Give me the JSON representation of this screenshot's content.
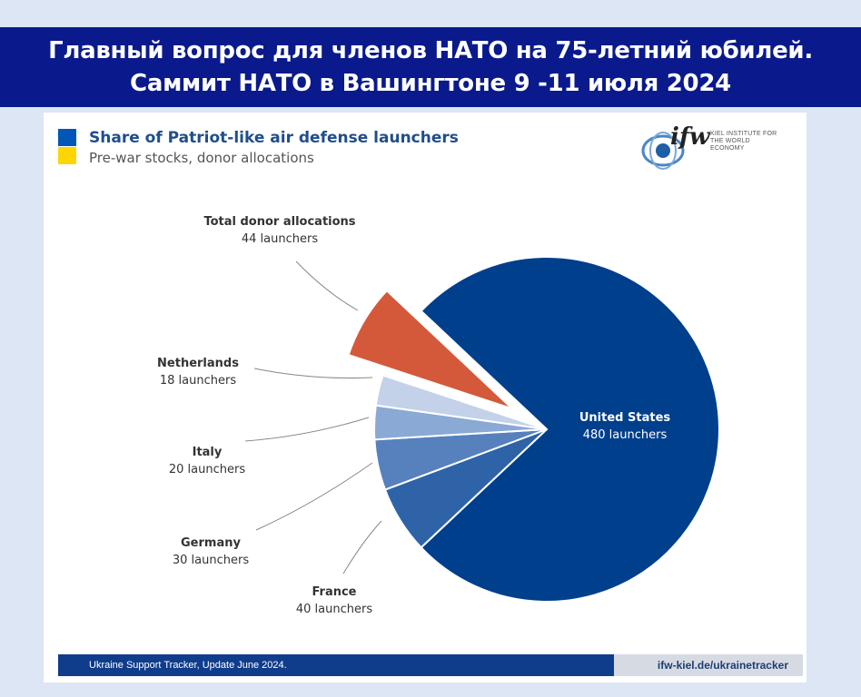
{
  "banner": {
    "line1": "Главный вопрос для членов НАТО на 75-летний юбилей.",
    "line2": "Саммит НАТО в Вашингтоне 9 -11 июля 2024"
  },
  "logo": {
    "mark": "ifw",
    "institute_line1": "KIEL INSTITUTE FOR",
    "institute_line2": "THE WORLD ECONOMY"
  },
  "footer": {
    "source": "Ukraine Support Tracker, Update June 2024.",
    "url": "ifw-kiel.de/ukrainetracker"
  },
  "chart_data": {
    "type": "pie",
    "title": "Share of Patriot-like air defense launchers",
    "subtitle": "Pre-war stocks, donor allocations",
    "unit": "launchers",
    "slices": [
      {
        "name": "United States",
        "value": 480,
        "label": "480 launchers",
        "color": "#003f8c",
        "exploded": false
      },
      {
        "name": "France",
        "value": 40,
        "label": "40 launchers",
        "color": "#2e63a8",
        "exploded": false
      },
      {
        "name": "Germany",
        "value": 30,
        "label": "30 launchers",
        "color": "#5681bd",
        "exploded": false
      },
      {
        "name": "Italy",
        "value": 20,
        "label": "20 launchers",
        "color": "#8aa9d4",
        "exploded": false
      },
      {
        "name": "Netherlands",
        "value": 18,
        "label": "18 launchers",
        "color": "#c3d2e9",
        "exploded": false
      },
      {
        "name": "Total donor allocations",
        "value": 44,
        "label": "44 launchers",
        "color": "#d4593a",
        "exploded": true
      }
    ]
  }
}
